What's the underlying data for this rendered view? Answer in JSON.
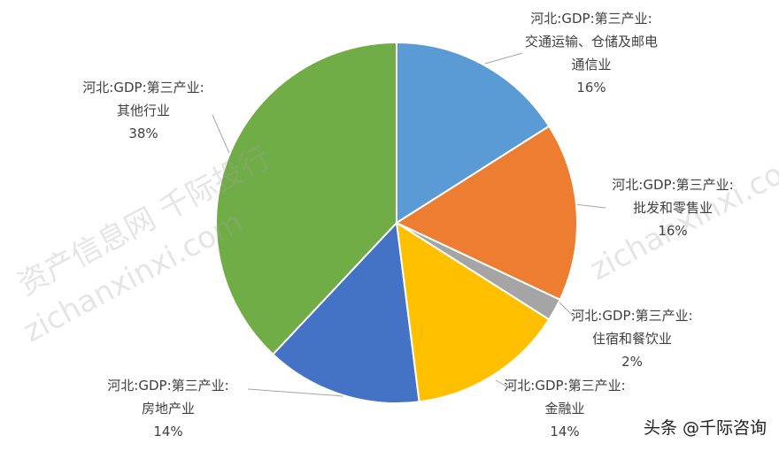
{
  "chart_data": {
    "type": "pie",
    "categories": [
      "河北:GDP:第三产业:交通运输、仓储及邮电通信业",
      "河北:GDP:第三产业:批发和零售业",
      "河北:GDP:第三产业:住宿和餐饮业",
      "河北:GDP:第三产业:金融业",
      "河北:GDP:第三产业:房地产业",
      "河北:GDP:第三产业:其他行业"
    ],
    "values": [
      16,
      16,
      2,
      14,
      14,
      38
    ],
    "value_labels": [
      "16%",
      "16%",
      "2%",
      "14%",
      "14%",
      "38%"
    ],
    "colors": [
      "#5b9bd5",
      "#ed7d31",
      "#a5a5a5",
      "#ffc000",
      "#4472c4",
      "#70ad47"
    ]
  },
  "watermarks": [
    "资产信息网 千际投行",
    "zichanxinxi.com"
  ],
  "credit": "头条 @千际咨询"
}
